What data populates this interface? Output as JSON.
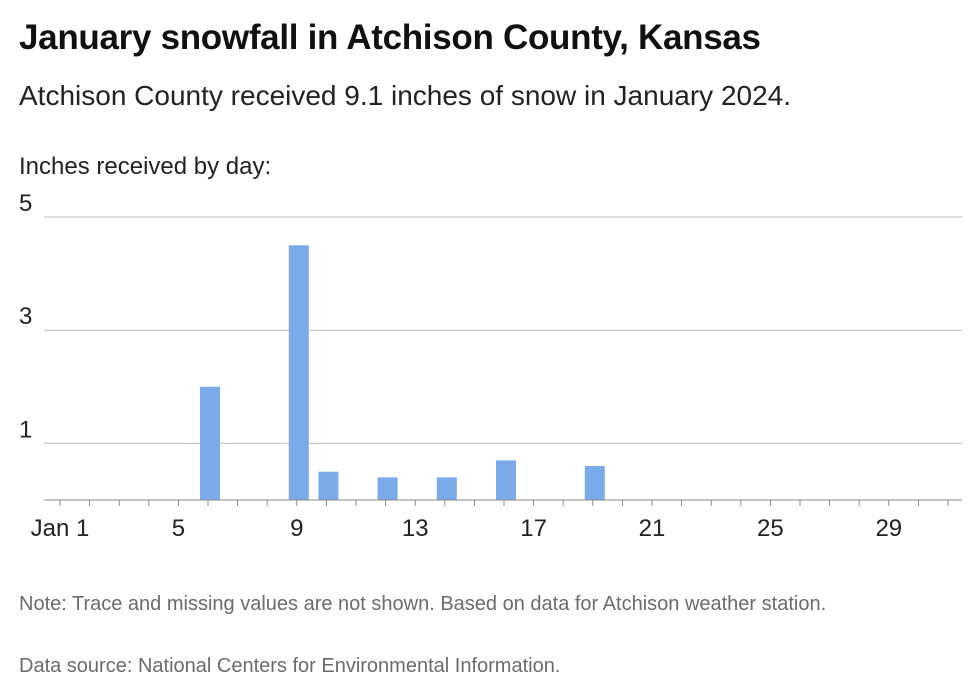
{
  "title": "January snowfall in Atchison County, Kansas",
  "subtitle": "Atchison County received 9.1 inches of snow in January 2024.",
  "note": "Note: Trace and missing values are not shown. Based on data for Atchison weather station.",
  "source": "Data source: National Centers for Environmental Information.",
  "chart_data": {
    "type": "bar",
    "ylabel": "Inches received by day:",
    "xlabel": "",
    "ylim": [
      0,
      5
    ],
    "y_ticks": [
      1,
      3,
      5
    ],
    "x_ticks": [
      {
        "day": 1,
        "label": "Jan 1"
      },
      {
        "day": 5,
        "label": "5"
      },
      {
        "day": 9,
        "label": "9"
      },
      {
        "day": 13,
        "label": "13"
      },
      {
        "day": 17,
        "label": "17"
      },
      {
        "day": 21,
        "label": "21"
      },
      {
        "day": 25,
        "label": "25"
      },
      {
        "day": 29,
        "label": "29"
      }
    ],
    "x": [
      6,
      9,
      10,
      12,
      14,
      16,
      19
    ],
    "values": [
      2.0,
      4.5,
      0.5,
      0.4,
      0.4,
      0.7,
      0.6
    ],
    "bar_color": "#7aaaea",
    "grid": true
  }
}
